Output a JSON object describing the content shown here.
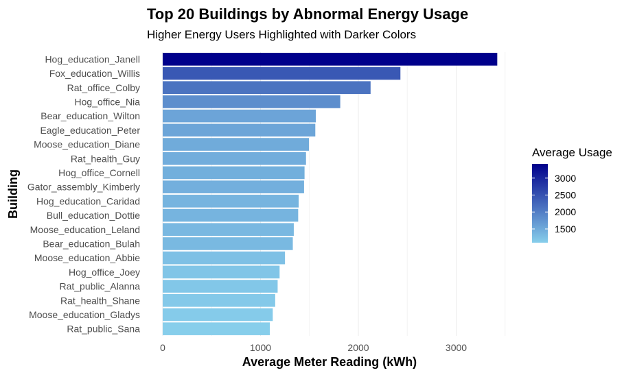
{
  "chart_data": {
    "type": "bar",
    "orientation": "horizontal",
    "title": "Top 20 Buildings by Abnormal Energy Usage",
    "subtitle": "Higher Energy Users Highlighted with Darker Colors",
    "xlabel": "Average Meter Reading (kWh)",
    "ylabel": "Building",
    "xlim": [
      0,
      3500
    ],
    "x_ticks": [
      0,
      1000,
      2000,
      3000
    ],
    "grid": true,
    "legend": {
      "title": "Average Usage",
      "position": "right",
      "ticks": [
        1500,
        2000,
        2500,
        3000
      ],
      "low_color": "#87CEEB",
      "high_color": "#00008B"
    },
    "categories": [
      "Hog_education_Janell",
      "Fox_education_Willis",
      "Rat_office_Colby",
      "Hog_office_Nia",
      "Bear_education_Wilton",
      "Eagle_education_Peter",
      "Moose_education_Diane",
      "Rat_health_Guy",
      "Hog_office_Cornell",
      "Gator_assembly_Kimberly",
      "Hog_education_Caridad",
      "Bull_education_Dottie",
      "Moose_education_Leland",
      "Bear_education_Bulah",
      "Moose_education_Abbie",
      "Hog_office_Joey",
      "Rat_public_Alanna",
      "Rat_health_Shane",
      "Moose_education_Gladys",
      "Rat_public_Sana"
    ],
    "values": [
      3420,
      2430,
      2125,
      1815,
      1565,
      1560,
      1495,
      1465,
      1450,
      1445,
      1390,
      1385,
      1340,
      1330,
      1250,
      1195,
      1175,
      1150,
      1125,
      1095
    ]
  }
}
